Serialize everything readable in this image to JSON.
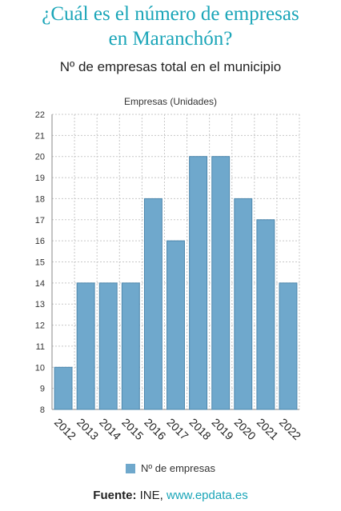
{
  "header": {
    "title_line1": "¿Cuál es el número de empresas",
    "title_line2": "en Maranchón?"
  },
  "colors": {
    "accent": "#1aa5b8",
    "bar": "#6fa8cc",
    "bar_stroke": "#4d87ad"
  },
  "chart_data": {
    "type": "bar",
    "title": "Nº de empresas total en el municipio",
    "ylabel": "Empresas (Unidades)",
    "xlabel": "",
    "categories": [
      "2012",
      "2013",
      "2014",
      "2015",
      "2016",
      "2017",
      "2018",
      "2019",
      "2020",
      "2021",
      "2022"
    ],
    "series": [
      {
        "name": "Nº de empresas",
        "values": [
          10,
          14,
          14,
          14,
          18,
          16,
          20,
          20,
          18,
          17,
          14
        ]
      }
    ],
    "ylim": [
      8,
      22
    ],
    "yticks": [
      8,
      9,
      10,
      11,
      12,
      13,
      14,
      15,
      16,
      17,
      18,
      19,
      20,
      21,
      22
    ],
    "grid": true,
    "legend": "bottom"
  },
  "footer": {
    "source_label": "Fuente:",
    "source_name": "INE,",
    "source_link": "www.epdata.es"
  }
}
